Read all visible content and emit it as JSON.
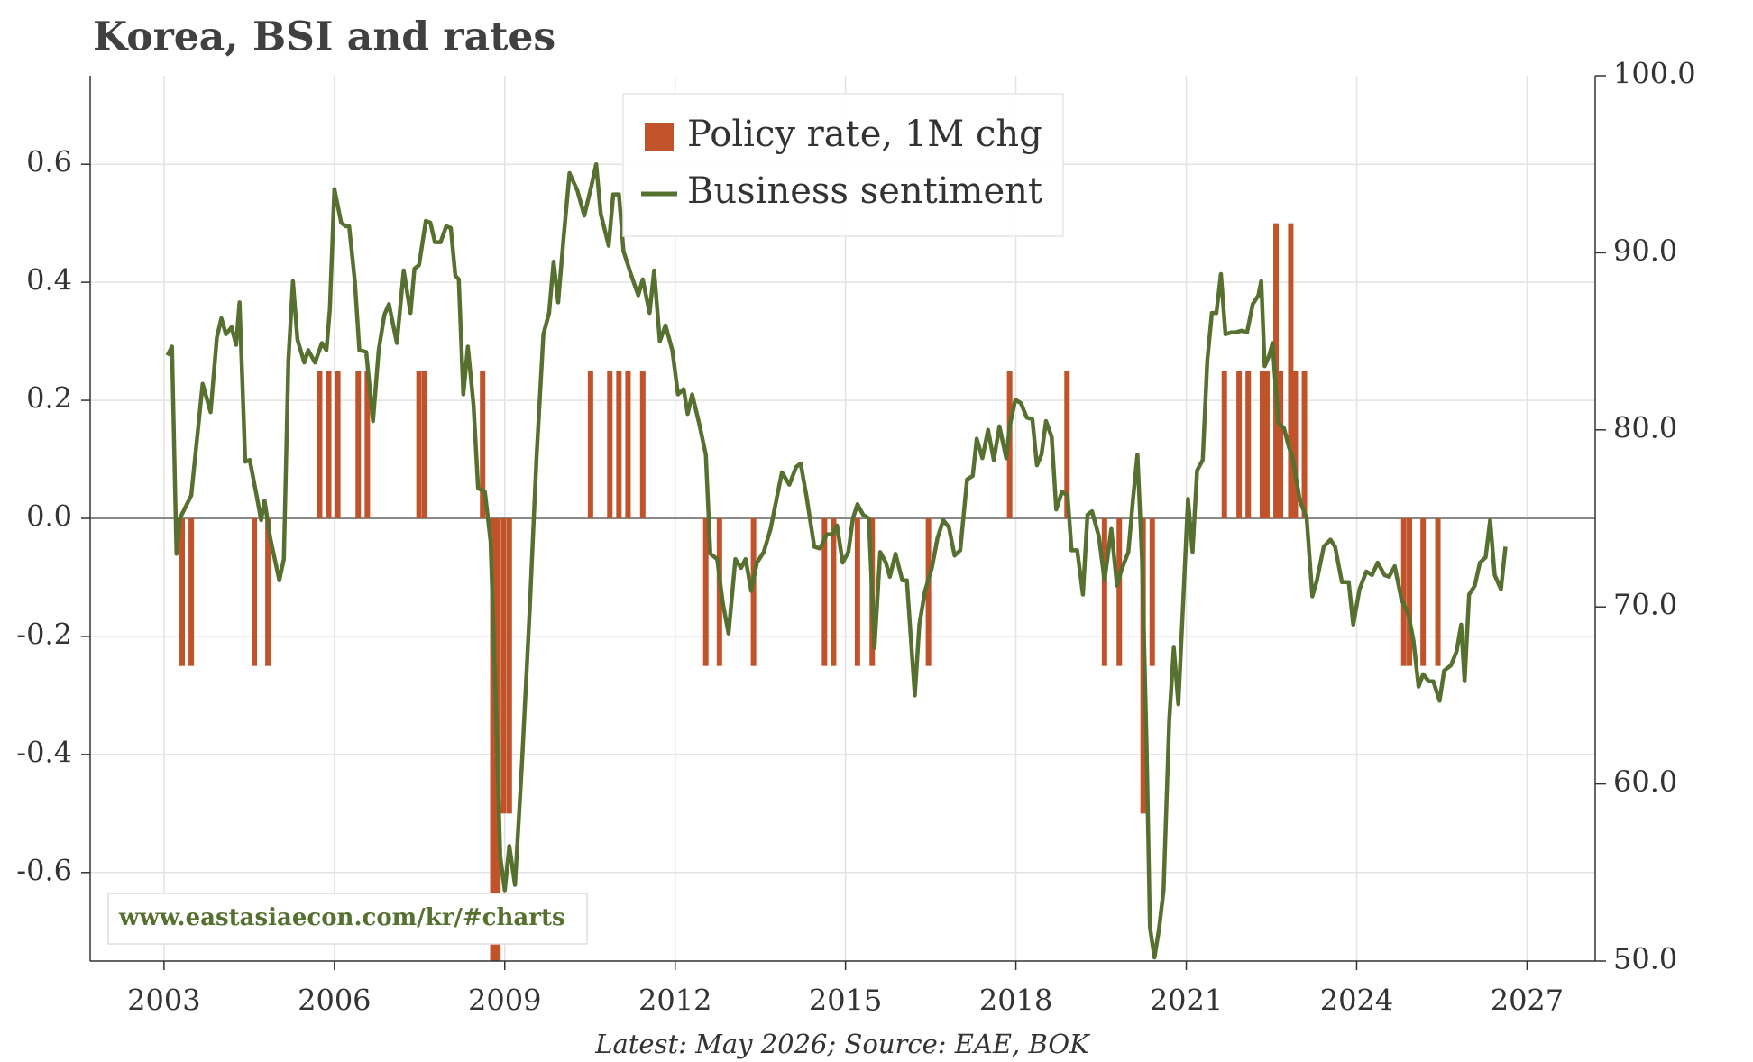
{
  "chart_data": {
    "type": "combo",
    "title": "Korea, BSI and rates",
    "note": "Latest: May 2026; Source: EAE, BOK",
    "watermark": "www.eastasiaecon.com/kr/#charts",
    "legend": "upper center",
    "grid": true,
    "xlim": [
      2001.7,
      2028.2
    ],
    "xticks": [
      2003,
      2006,
      2009,
      2012,
      2015,
      2018,
      2021,
      2024,
      2027
    ],
    "ylim": [
      -0.75,
      0.75
    ],
    "yticks": [
      -0.6,
      -0.4,
      -0.2,
      {
        "value": 0,
        "label": "0.0"
      },
      0.2,
      0.4,
      0.6
    ],
    "y2lim": [
      50,
      100
    ],
    "y2ticks": [
      {
        "value": 50,
        "label": "50.0"
      },
      {
        "value": 60,
        "label": "60.0"
      },
      {
        "value": 70,
        "label": "70.0"
      },
      {
        "value": 80,
        "label": "80.0"
      },
      {
        "value": 90,
        "label": "90.0"
      },
      {
        "value": 100,
        "label": "100.0"
      }
    ],
    "series": [
      {
        "name": "Policy rate, 1M chg",
        "type": "bar",
        "color": "#c0532a",
        "x": [
          2003.32,
          2003.48,
          2004.59,
          2004.83,
          2005.74,
          2005.9,
          2006.06,
          2006.42,
          2006.58,
          2007.49,
          2007.59,
          2008.61,
          2008.79,
          2008.88,
          2008.98,
          2009.08,
          2010.51,
          2010.85,
          2011.01,
          2011.17,
          2011.43,
          2012.54,
          2012.78,
          2013.38,
          2014.63,
          2014.79,
          2015.21,
          2015.47,
          2016.46,
          2017.89,
          2018.9,
          2019.56,
          2019.82,
          2020.24,
          2020.4,
          2021.67,
          2021.93,
          2022.09,
          2022.34,
          2022.42,
          2022.58,
          2022.66,
          2022.84,
          2022.92,
          2023.08,
          2024.83,
          2024.93,
          2025.17,
          2025.43
        ],
        "values": [
          -0.25,
          -0.25,
          -0.25,
          -0.25,
          0.25,
          0.25,
          0.25,
          0.25,
          0.25,
          0.25,
          0.25,
          0.25,
          -0.75,
          -0.75,
          -0.5,
          -0.5,
          0.25,
          0.25,
          0.25,
          0.25,
          0.25,
          -0.25,
          -0.25,
          -0.25,
          -0.25,
          -0.25,
          -0.25,
          -0.25,
          -0.25,
          0.25,
          0.25,
          -0.25,
          -0.25,
          -0.5,
          -0.25,
          0.25,
          0.25,
          0.25,
          0.25,
          0.25,
          0.5,
          0.25,
          0.5,
          0.25,
          0.25,
          -0.25,
          -0.25,
          -0.25,
          -0.25
        ]
      },
      {
        "name": "Business sentiment",
        "type": "line",
        "axis": "y2",
        "color": "#55702f",
        "x": [
          2003.06,
          2003.14,
          2003.22,
          2003.28,
          2003.48,
          2003.68,
          2003.82,
          2003.93,
          2004.01,
          2004.09,
          2004.19,
          2004.27,
          2004.33,
          2004.43,
          2004.51,
          2004.63,
          2004.71,
          2004.77,
          2004.87,
          2005.03,
          2005.11,
          2005.19,
          2005.27,
          2005.35,
          2005.47,
          2005.54,
          2005.66,
          2005.78,
          2005.86,
          2005.92,
          2006.0,
          2006.12,
          2006.2,
          2006.26,
          2006.36,
          2006.44,
          2006.56,
          2006.68,
          2006.78,
          2006.88,
          2006.96,
          2007.1,
          2007.22,
          2007.34,
          2007.41,
          2007.49,
          2007.61,
          2007.69,
          2007.77,
          2007.87,
          2007.97,
          2008.05,
          2008.13,
          2008.19,
          2008.27,
          2008.35,
          2008.45,
          2008.53,
          2008.65,
          2008.75,
          2008.84,
          2008.92,
          2009.0,
          2009.08,
          2009.18,
          2009.3,
          2009.44,
          2009.56,
          2009.68,
          2009.78,
          2009.86,
          2009.94,
          2010.04,
          2010.14,
          2010.28,
          2010.4,
          2010.52,
          2010.61,
          2010.69,
          2010.83,
          2010.91,
          2011.01,
          2011.09,
          2011.23,
          2011.35,
          2011.43,
          2011.55,
          2011.63,
          2011.73,
          2011.83,
          2011.95,
          2012.05,
          2012.15,
          2012.22,
          2012.3,
          2012.42,
          2012.54,
          2012.62,
          2012.74,
          2012.84,
          2012.94,
          2013.06,
          2013.16,
          2013.24,
          2013.34,
          2013.44,
          2013.56,
          2013.68,
          2013.78,
          2013.88,
          2014.01,
          2014.13,
          2014.21,
          2014.31,
          2014.45,
          2014.55,
          2014.67,
          2014.77,
          2014.85,
          2014.95,
          2015.05,
          2015.13,
          2015.21,
          2015.31,
          2015.41,
          2015.51,
          2015.61,
          2015.71,
          2015.78,
          2015.88,
          2016.0,
          2016.08,
          2016.22,
          2016.3,
          2016.4,
          2016.52,
          2016.62,
          2016.72,
          2016.82,
          2016.92,
          2017.02,
          2017.14,
          2017.24,
          2017.31,
          2017.41,
          2017.51,
          2017.61,
          2017.71,
          2017.83,
          2017.89,
          2017.99,
          2018.09,
          2018.19,
          2018.29,
          2018.37,
          2018.45,
          2018.53,
          2018.63,
          2018.71,
          2018.81,
          2018.91,
          2018.98,
          2019.08,
          2019.18,
          2019.26,
          2019.34,
          2019.46,
          2019.56,
          2019.68,
          2019.78,
          2019.86,
          2019.98,
          2020.06,
          2020.14,
          2020.22,
          2020.3,
          2020.36,
          2020.44,
          2020.52,
          2020.6,
          2020.7,
          2020.78,
          2020.86,
          2020.95,
          2021.03,
          2021.11,
          2021.19,
          2021.29,
          2021.37,
          2021.45,
          2021.53,
          2021.61,
          2021.69,
          2021.79,
          2021.87,
          2021.97,
          2022.07,
          2022.17,
          2022.27,
          2022.32,
          2022.38,
          2022.46,
          2022.52,
          2022.62,
          2022.72,
          2022.8,
          2022.88,
          2023.0,
          2023.12,
          2023.22,
          2023.3,
          2023.42,
          2023.54,
          2023.62,
          2023.74,
          2023.86,
          2023.94,
          2024.05,
          2024.17,
          2024.27,
          2024.37,
          2024.49,
          2024.57,
          2024.67,
          2024.79,
          2024.91,
          2025.0,
          2025.09,
          2025.17,
          2025.27,
          2025.35,
          2025.46,
          2025.54,
          2025.66,
          2025.76,
          2025.84,
          2025.9,
          2025.98,
          2026.08,
          2026.17,
          2026.27,
          2026.35,
          2026.43,
          2026.54,
          2026.62
        ],
        "values": [
          84.2,
          84.7,
          73.0,
          75.0,
          76.3,
          82.6,
          81.0,
          85.2,
          86.3,
          85.4,
          85.8,
          84.8,
          87.2,
          78.2,
          78.3,
          76.3,
          74.9,
          76.0,
          73.9,
          71.5,
          72.7,
          83.9,
          88.4,
          85.1,
          83.8,
          84.5,
          83.8,
          84.9,
          84.5,
          86.8,
          93.6,
          91.7,
          91.5,
          91.5,
          88.4,
          84.5,
          84.4,
          80.5,
          84.5,
          86.5,
          87.1,
          84.9,
          89.0,
          86.6,
          89.1,
          89.3,
          91.8,
          91.7,
          90.6,
          90.6,
          91.5,
          91.4,
          88.7,
          88.5,
          82.0,
          84.7,
          81.4,
          76.7,
          76.5,
          73.7,
          64.8,
          55.9,
          54.0,
          56.5,
          54.3,
          61.0,
          69.9,
          78.5,
          85.4,
          86.6,
          89.5,
          87.2,
          91.0,
          94.5,
          93.5,
          92.1,
          93.7,
          95.0,
          92.2,
          90.4,
          93.3,
          93.3,
          90.1,
          88.7,
          87.6,
          88.5,
          86.6,
          89.0,
          85.0,
          85.9,
          84.5,
          82.0,
          82.3,
          80.9,
          82.0,
          80.4,
          78.6,
          73.0,
          72.7,
          70.2,
          68.5,
          72.7,
          72.2,
          72.7,
          70.9,
          72.5,
          73.1,
          74.4,
          76.0,
          77.6,
          76.9,
          77.9,
          78.1,
          76.3,
          73.4,
          73.3,
          74.1,
          74.1,
          74.6,
          72.5,
          73.1,
          75.0,
          75.8,
          75.2,
          75.0,
          67.7,
          73.1,
          72.5,
          71.7,
          73.0,
          71.5,
          71.5,
          65.0,
          69.0,
          70.9,
          72.2,
          73.9,
          74.9,
          74.5,
          72.9,
          73.2,
          77.2,
          77.4,
          79.5,
          78.4,
          80.0,
          78.3,
          80.2,
          78.4,
          80.2,
          81.7,
          81.5,
          80.7,
          80.6,
          78.0,
          78.6,
          80.5,
          79.6,
          75.5,
          76.5,
          76.3,
          73.2,
          73.2,
          70.7,
          75.2,
          75.4,
          74.0,
          71.5,
          74.4,
          71.2,
          72.1,
          73.1,
          76.0,
          78.6,
          72.8,
          62.3,
          51.9,
          50.2,
          51.8,
          54.0,
          63.6,
          67.7,
          64.5,
          70.6,
          76.1,
          73.1,
          77.7,
          78.3,
          83.9,
          86.6,
          86.6,
          88.8,
          85.4,
          85.5,
          85.5,
          85.6,
          85.5,
          87.1,
          87.6,
          88.4,
          83.6,
          84.2,
          84.9,
          80.4,
          80.1,
          79.1,
          78.3,
          76.0,
          75.0,
          70.6,
          71.5,
          73.4,
          73.8,
          73.4,
          71.4,
          71.4,
          69.0,
          71.0,
          72.0,
          71.8,
          72.5,
          71.8,
          71.7,
          72.3,
          70.4,
          69.6,
          68.1,
          65.5,
          66.2,
          65.8,
          65.8,
          64.7,
          66.4,
          66.7,
          67.5,
          69.0,
          65.8,
          70.7,
          71.2,
          72.5,
          72.8,
          74.9,
          71.8,
          71.0,
          73.4
        ]
      }
    ]
  }
}
